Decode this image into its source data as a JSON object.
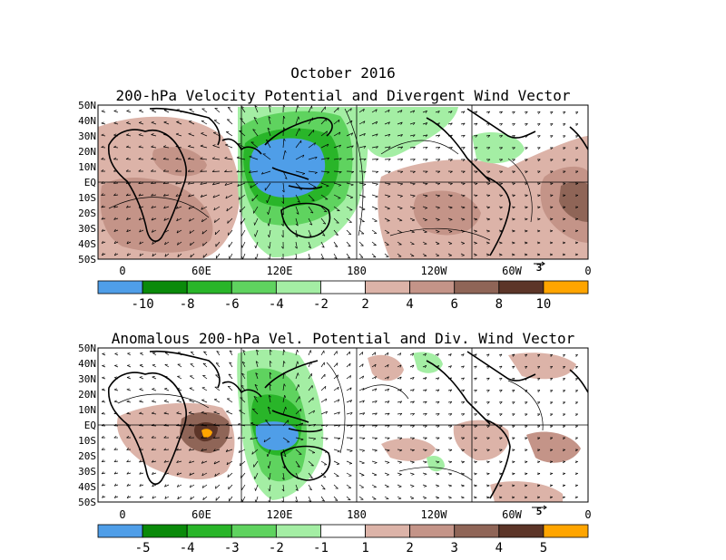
{
  "figure": {
    "title": "October 2016",
    "panels": [
      {
        "title": "200-hPa Velocity Potential and Divergent Wind Vector",
        "lat_labels": [
          "50N",
          "40N",
          "30N",
          "20N",
          "10N",
          "EQ",
          "10S",
          "20S",
          "30S",
          "40S",
          "50S"
        ],
        "lon_labels": [
          "0",
          "60E",
          "120E",
          "180",
          "120W",
          "60W",
          "0"
        ],
        "vector_ref": "3",
        "colorbar": {
          "colors": [
            "#4f9ee8",
            "#0a8a0a",
            "#29b529",
            "#5fd35f",
            "#a4eea4",
            "#ffffff",
            "#dcb3a8",
            "#c49488",
            "#8f6557",
            "#5c3528",
            "#ffa500"
          ],
          "labels": [
            "-10",
            "-8",
            "-6",
            "-4",
            "-2",
            "2",
            "4",
            "6",
            "8",
            "10"
          ]
        }
      },
      {
        "title": "Anomalous 200-hPa Vel. Potential and Div. Wind Vector",
        "lat_labels": [
          "50N",
          "40N",
          "30N",
          "20N",
          "10N",
          "EQ",
          "10S",
          "20S",
          "30S",
          "40S",
          "50S"
        ],
        "lon_labels": [
          "0",
          "60E",
          "120E",
          "180",
          "120W",
          "60W",
          "0"
        ],
        "vector_ref": "5",
        "colorbar": {
          "colors": [
            "#4f9ee8",
            "#0a8a0a",
            "#29b529",
            "#5fd35f",
            "#a4eea4",
            "#ffffff",
            "#dcb3a8",
            "#c49488",
            "#8f6557",
            "#5c3528",
            "#ffa500"
          ],
          "labels": [
            "-5",
            "-4",
            "-3",
            "-2",
            "-1",
            "1",
            "2",
            "3",
            "4",
            "5"
          ]
        }
      }
    ]
  }
}
